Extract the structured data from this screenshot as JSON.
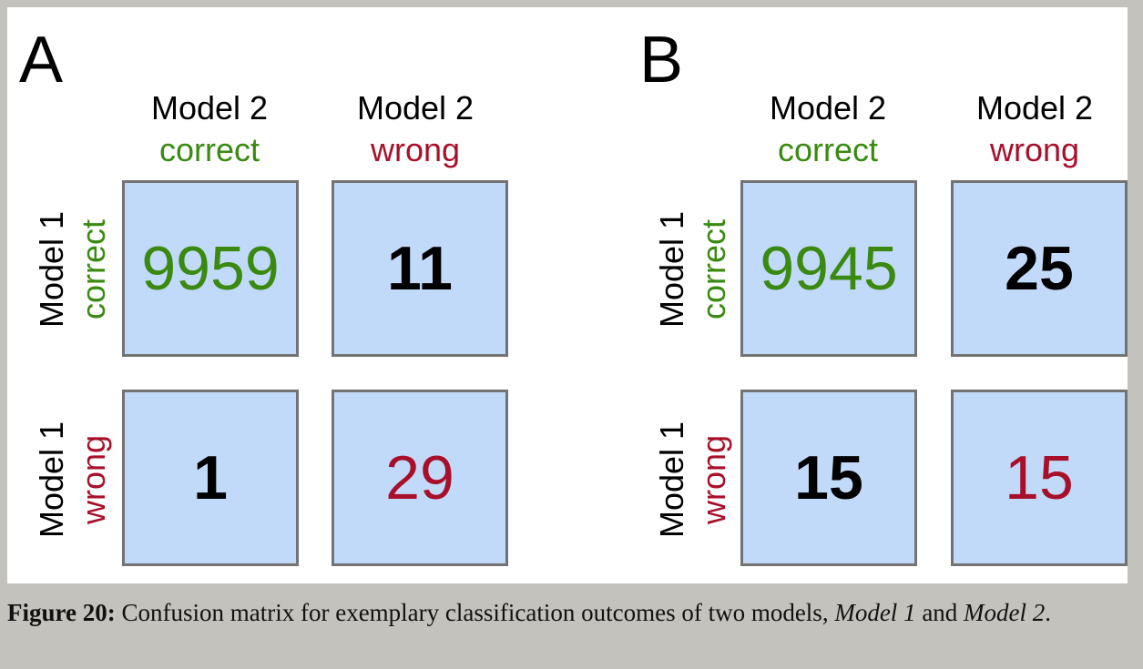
{
  "colors": {
    "correct": "#3a8a12",
    "wrong": "#a8102a",
    "neutral": "#000000",
    "cell_bg": "#c2dafa",
    "cell_border": "#737373"
  },
  "panels": [
    {
      "letter": "A",
      "columns": [
        {
          "model": "Model 2",
          "outcome": "correct",
          "outcome_color": "correct"
        },
        {
          "model": "Model 2",
          "outcome": "wrong",
          "outcome_color": "wrong"
        }
      ],
      "rows": [
        {
          "model": "Model 1",
          "outcome": "correct",
          "outcome_color": "correct"
        },
        {
          "model": "Model 1",
          "outcome": "wrong",
          "outcome_color": "wrong"
        }
      ],
      "cells": [
        [
          {
            "value": "9959",
            "style": "correct"
          },
          {
            "value": "11",
            "style": "neutral"
          }
        ],
        [
          {
            "value": "1",
            "style": "neutral"
          },
          {
            "value": "29",
            "style": "wrong"
          }
        ]
      ]
    },
    {
      "letter": "B",
      "columns": [
        {
          "model": "Model 2",
          "outcome": "correct",
          "outcome_color": "correct"
        },
        {
          "model": "Model 2",
          "outcome": "wrong",
          "outcome_color": "wrong"
        }
      ],
      "rows": [
        {
          "model": "Model 1",
          "outcome": "correct",
          "outcome_color": "correct"
        },
        {
          "model": "Model 1",
          "outcome": "wrong",
          "outcome_color": "wrong"
        }
      ],
      "cells": [
        [
          {
            "value": "9945",
            "style": "correct"
          },
          {
            "value": "25",
            "style": "neutral"
          }
        ],
        [
          {
            "value": "15",
            "style": "neutral"
          },
          {
            "value": "15",
            "style": "wrong"
          }
        ]
      ]
    }
  ],
  "caption": {
    "label": "Figure 20:",
    "text_before": " Confusion matrix for exemplary classification outcomes of two models, ",
    "model1": "Model 1",
    "and": " and ",
    "model2": "Model 2",
    "end": "."
  }
}
